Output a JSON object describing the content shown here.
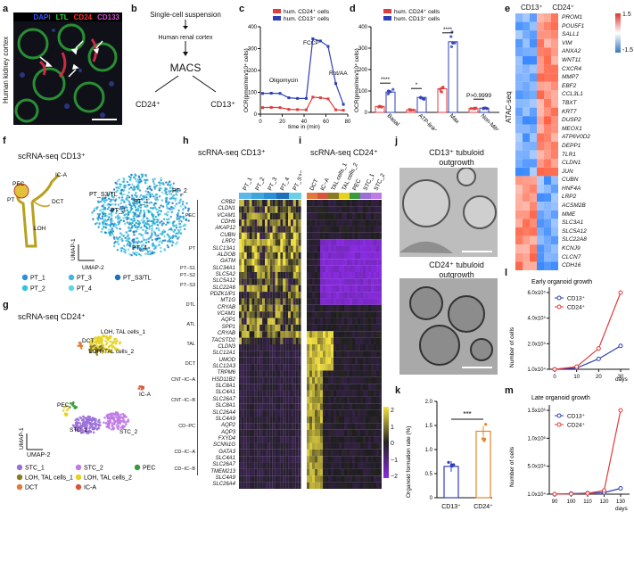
{
  "panel_letters": [
    "a",
    "b",
    "c",
    "d",
    "e",
    "f",
    "g",
    "h",
    "i",
    "j",
    "k",
    "l",
    "m"
  ],
  "a": {
    "ylabel": "Human kidney cortex",
    "legend": [
      {
        "label": "DAPI",
        "color": "#3355ff"
      },
      {
        "label": "LTL",
        "color": "#33dd33"
      },
      {
        "label": "CD24",
        "color": "#ff3333"
      },
      {
        "label": "CD133",
        "color": "#cc55cc"
      }
    ]
  },
  "b": {
    "title": "Single-cell suspension",
    "subtitle": "Human renal cortex",
    "center": "MACS",
    "left": "CD24⁺",
    "right": "CD13⁺"
  },
  "c": {
    "legend": [
      "hum. CD24⁺ cells",
      "hum. CD13⁺ cells"
    ],
    "ylabel": "OCR(pmol/min/10⁴ cells)",
    "xlabel": "time in (min)",
    "annotations": [
      "Oligomycin",
      "FCCP",
      "Rot/AA"
    ],
    "xticks": [
      "0",
      "20",
      "40",
      "60",
      "80"
    ],
    "yticks": [
      "0",
      "100",
      "200",
      "300",
      "400"
    ],
    "chart_data": {
      "type": "line",
      "x": [
        2,
        10,
        18,
        26,
        34,
        42,
        48,
        55,
        62,
        69,
        76
      ],
      "series": [
        {
          "name": "hum. CD24⁺ cells",
          "color": "#e23b3b",
          "values": [
            30,
            31,
            30,
            22,
            21,
            20,
            78,
            75,
            70,
            20,
            18
          ]
        },
        {
          "name": "hum. CD13⁺ cells",
          "color": "#2d3fb5",
          "values": [
            95,
            96,
            95,
            75,
            72,
            72,
            345,
            335,
            310,
            140,
            45
          ]
        }
      ],
      "xlim": [
        0,
        80
      ],
      "ylim": [
        0,
        400
      ]
    }
  },
  "d": {
    "legend": [
      "hum. CD24⁺ cells",
      "hum. CD13⁺ cells"
    ],
    "ylabel": "OCR(pmol/min/10⁴ cells)",
    "categories": [
      "Basal",
      "ATP-linked",
      "Max",
      "Non-Mito"
    ],
    "sig": [
      "****",
      "*",
      "****",
      "P>0.9999"
    ],
    "yticks": [
      "0",
      "100",
      "200",
      "300",
      "400"
    ],
    "chart_data": {
      "type": "bar",
      "categories": [
        "Basal",
        "ATP-linked",
        "Max",
        "Non-Mito"
      ],
      "series": [
        {
          "name": "hum. CD24⁺ cells",
          "color": "#e23b3b",
          "values": [
            28,
            12,
            110,
            18
          ]
        },
        {
          "name": "hum. CD13⁺ cells",
          "color": "#2d3fb5",
          "values": [
            95,
            70,
            330,
            20
          ]
        }
      ],
      "ylim": [
        0,
        400
      ]
    }
  },
  "e": {
    "ylabel": "ATAC-seq",
    "columns": [
      "CD13⁺",
      "CD24⁺"
    ],
    "scale": [
      "1.5",
      "-1.5"
    ],
    "genes": [
      "PROM1",
      "POU5F1",
      "SALL1",
      "VIM",
      "ANXA2",
      "WNT11",
      "CXCR4",
      "MMP7",
      "EBF2",
      "CCL3L1",
      "TBXT",
      "KRT7",
      "DUSP2",
      "MEOX1",
      "ATP6V0D2",
      "DEPP1",
      "TLR1",
      "CLDN1",
      "JUN",
      "CUBN",
      "HNF4A",
      "LRP2",
      "ACSM2B",
      "MME",
      "SLC3A1",
      "SLC5A12",
      "SLC22A8",
      "KCNJ9",
      "CLCN7",
      "CDH16"
    ]
  },
  "f": {
    "title": "scRNA-seq CD13⁺",
    "schematic_labels": [
      "PEC",
      "IC-A",
      "PT",
      "DCT",
      "LOH"
    ],
    "umap_labels": [
      "PT_S3/TL",
      "PT_1",
      "PT_2",
      "PT_3",
      "PT_4"
    ],
    "axis_x": "UMAP-2",
    "axis_y": "UMAP-1",
    "legend": [
      {
        "label": "PT_1",
        "color": "#2a8fd8"
      },
      {
        "label": "PT_3",
        "color": "#3fb7e6"
      },
      {
        "label": "PT_S3/TL",
        "color": "#1f6fb8"
      },
      {
        "label": "PT_2",
        "color": "#33c3d8"
      },
      {
        "label": "PT_4",
        "color": "#5fd6e6"
      }
    ]
  },
  "g": {
    "title": "scRNA-seq CD24⁺",
    "umap_labels": [
      "DCT",
      "LOH, TAL cells_1",
      "LOH, TAL cells_2",
      "IC-A",
      "PEC",
      "STC_1",
      "STC_2"
    ],
    "axis_x": "UMAP-2",
    "axis_y": "UMAP-1",
    "legend": [
      {
        "label": "STC_1",
        "color": "#9a6fd8"
      },
      {
        "label": "LOH, TAL cells_1",
        "color": "#8a7a20"
      },
      {
        "label": "DCT",
        "color": "#e07a3a"
      },
      {
        "label": "STC_2",
        "color": "#c07ae6"
      },
      {
        "label": "LOH, TAL cells_2",
        "color": "#e6d020"
      },
      {
        "label": "IC-A",
        "color": "#d9553a"
      },
      {
        "label": "PEC",
        "color": "#3a9a3a"
      }
    ]
  },
  "h": {
    "title": "scRNA-seq CD13⁺",
    "clusters": [
      "PT_1",
      "PT_2",
      "PT_3",
      "PT_4",
      "PT_S3/TL"
    ],
    "groups": [
      "PEC",
      "PT",
      "PT−S1",
      "PT−S2",
      "PT−S3",
      "DTL",
      "ATL",
      "TAL",
      "DCT",
      "CNT−IC−A",
      "CNT−IC−B",
      "CD−PC",
      "CD−IC−A",
      "CD−IC−B"
    ],
    "genes": [
      "CRB2",
      "CLDN1",
      "VCAM1",
      "CDH6",
      "AKAP12",
      "CUBN",
      "LRP2",
      "SLC13A1",
      "ALDOB",
      "GATM",
      "SLC34A1",
      "SLC5A2",
      "SLC5A12",
      "SLC22A6",
      "PDZK1IP1",
      "MT1G",
      "CRYAB",
      "VCAM1",
      "AQP1",
      "SPP1",
      "CRYAB",
      "TACSTD2",
      "CLDN3",
      "SLC12A1",
      "UMOD",
      "SLC12A3",
      "TRPM6",
      "HSD11B2",
      "SLC8A1",
      "SLC4A1",
      "SLC26A7",
      "SLC8A1",
      "SLC26A4",
      "SLC4A9",
      "AQP2",
      "AQP3",
      "FXYD4",
      "SCNN1G",
      "GATA3",
      "SLC4A1",
      "SLC26A7",
      "TMEM213",
      "SLC4A9",
      "SLC26A4"
    ]
  },
  "i": {
    "title": "scRNA-seq CD24⁺",
    "clusters": [
      "DCT",
      "IC−A",
      "TAL cells_1",
      "TAL cells_2",
      "PEC",
      "STC_1",
      "STC_2"
    ],
    "scale": [
      "2",
      "1",
      "0",
      "−1",
      "−2"
    ]
  },
  "j": {
    "top_title": "CD13⁺ tubuloid outgrowth",
    "bottom_title": "CD24⁺ tubuloid outgrowth"
  },
  "k": {
    "ylabel": "Organoid formation rate (%)",
    "sig": "***",
    "yticks": [
      "0",
      "0.5",
      "1.0",
      "1.5",
      "2.0"
    ],
    "categories": [
      "CD13⁺",
      "CD24⁺"
    ],
    "chart_data": {
      "type": "bar",
      "categories": [
        "CD13⁺",
        "CD24⁺"
      ],
      "values": [
        0.65,
        1.38
      ],
      "ylim": [
        0,
        2.0
      ],
      "colors": [
        "#2d3fb5",
        "#e0892a"
      ]
    }
  },
  "l": {
    "title": "Early organoid growth",
    "ylabel": "Number of cells",
    "xlabel": "days",
    "legend": [
      "CD13⁺",
      "CD24⁺"
    ],
    "xticks": [
      "0",
      "10",
      "20",
      "30"
    ],
    "yticks": [
      "1.0x10⁴",
      "2.0x10⁵",
      "4.0x10⁵",
      "6.0x10⁵"
    ],
    "chart_data": {
      "type": "line",
      "x": [
        0,
        10,
        20,
        30
      ],
      "series": [
        {
          "name": "CD13⁺",
          "color": "#2d3fb5",
          "values": [
            10000,
            20000,
            90000,
            190000
          ]
        },
        {
          "name": "CD24⁺",
          "color": "#e23b3b",
          "values": [
            10000,
            30000,
            170000,
            600000
          ]
        }
      ],
      "ylim": [
        10000,
        600000
      ]
    }
  },
  "m": {
    "title": "Late organoid growth",
    "ylabel": "Number of cells",
    "xlabel": "days",
    "legend": [
      "CD13⁺",
      "CD24⁺"
    ],
    "xticks": [
      "90",
      "100",
      "110",
      "120",
      "130"
    ],
    "yticks": [
      "1.0x10⁴",
      "5.0x10⁵",
      "1.0x10⁶",
      "1.5x10⁶"
    ],
    "chart_data": {
      "type": "line",
      "x": [
        90,
        100,
        110,
        120,
        130
      ],
      "series": [
        {
          "name": "CD13⁺",
          "color": "#2d3fb5",
          "values": [
            10000,
            20000,
            30000,
            40000,
            120000
          ]
        },
        {
          "name": "CD24⁺",
          "color": "#e23b3b",
          "values": [
            10000,
            15000,
            25000,
            80000,
            1600000
          ]
        }
      ],
      "ylim": [
        10000,
        1600000
      ]
    }
  }
}
